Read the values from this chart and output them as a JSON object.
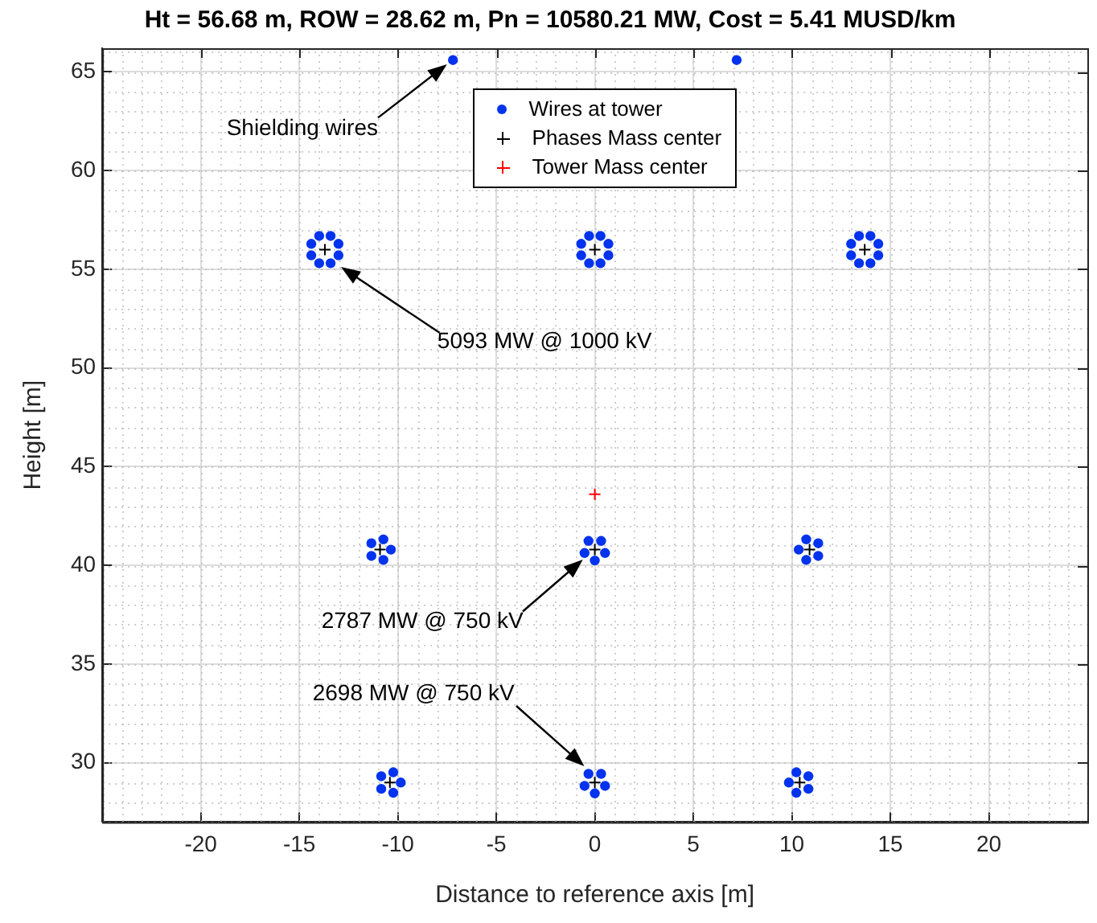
{
  "chart_data": {
    "type": "scatter",
    "title": "Ht = 56.68 m, ROW = 28.62 m, Pn = 10580.21 MW, Cost = 5.41 MUSD/km",
    "xlabel": "Distance to reference axis [m]",
    "ylabel": "Height [m]",
    "xlim": [
      -25,
      25
    ],
    "xticks": [
      -20,
      -15,
      -10,
      -5,
      0,
      5,
      10,
      15,
      20
    ],
    "ylim": [
      27,
      66.2
    ],
    "yticks": [
      30,
      35,
      40,
      45,
      50,
      55,
      60,
      65
    ],
    "grid": true,
    "legend": "top",
    "series": [
      {
        "name": "Wires at tower",
        "color": "#0033ee",
        "marker": "circle",
        "x": [
          -7.2,
          7.2,
          -13.01,
          -13.41,
          -13.99,
          -14.39,
          -14.39,
          -13.99,
          -13.41,
          -13.01,
          0.69,
          0.29,
          -0.29,
          -0.69,
          -0.69,
          -0.29,
          0.29,
          0.69,
          14.39,
          13.99,
          13.41,
          13.01,
          13.01,
          13.41,
          13.99,
          14.39,
          -10.35,
          -10.73,
          -11.34,
          -11.34,
          -10.73,
          0,
          0.52,
          0.32,
          -0.32,
          -0.52,
          10.35,
          10.73,
          11.34,
          11.34,
          10.73,
          -9.85,
          -10.23,
          -10.84,
          -10.84,
          -10.23,
          0,
          0.52,
          0.32,
          -0.32,
          -0.52,
          9.85,
          10.23,
          10.84,
          10.84,
          10.23
        ],
        "values": [
          65.6,
          65.6,
          56.29,
          56.69,
          56.69,
          56.29,
          55.71,
          55.31,
          55.31,
          55.71,
          56.29,
          56.69,
          56.69,
          56.29,
          55.71,
          55.31,
          55.31,
          55.71,
          56.29,
          56.69,
          56.69,
          56.29,
          55.71,
          55.31,
          55.31,
          55.71,
          40.8,
          41.32,
          41.12,
          40.48,
          40.28,
          40.25,
          40.63,
          41.24,
          41.24,
          40.63,
          40.8,
          41.32,
          41.12,
          40.48,
          40.28,
          29.0,
          29.52,
          29.32,
          28.68,
          28.48,
          28.45,
          28.83,
          29.44,
          29.44,
          28.83,
          29.0,
          29.52,
          29.32,
          28.68,
          28.48
        ]
      },
      {
        "name": "Phases Mass center",
        "color": "#000000",
        "marker": "cross",
        "x": [
          -13.7,
          0,
          13.7,
          -10.9,
          0,
          10.9,
          -10.4,
          0,
          10.4
        ],
        "values": [
          56.0,
          56.0,
          56.0,
          40.8,
          40.8,
          40.8,
          29.0,
          29.0,
          29.0
        ]
      },
      {
        "name": "Tower Mass center",
        "color": "#ff0000",
        "marker": "cross",
        "x": [
          0
        ],
        "values": [
          43.6
        ]
      }
    ],
    "annotations": [
      "Shielding wires",
      "5093 MW @ 1000 kV",
      "2787 MW @ 750 kV",
      "2698 MW @ 750 kV"
    ]
  }
}
